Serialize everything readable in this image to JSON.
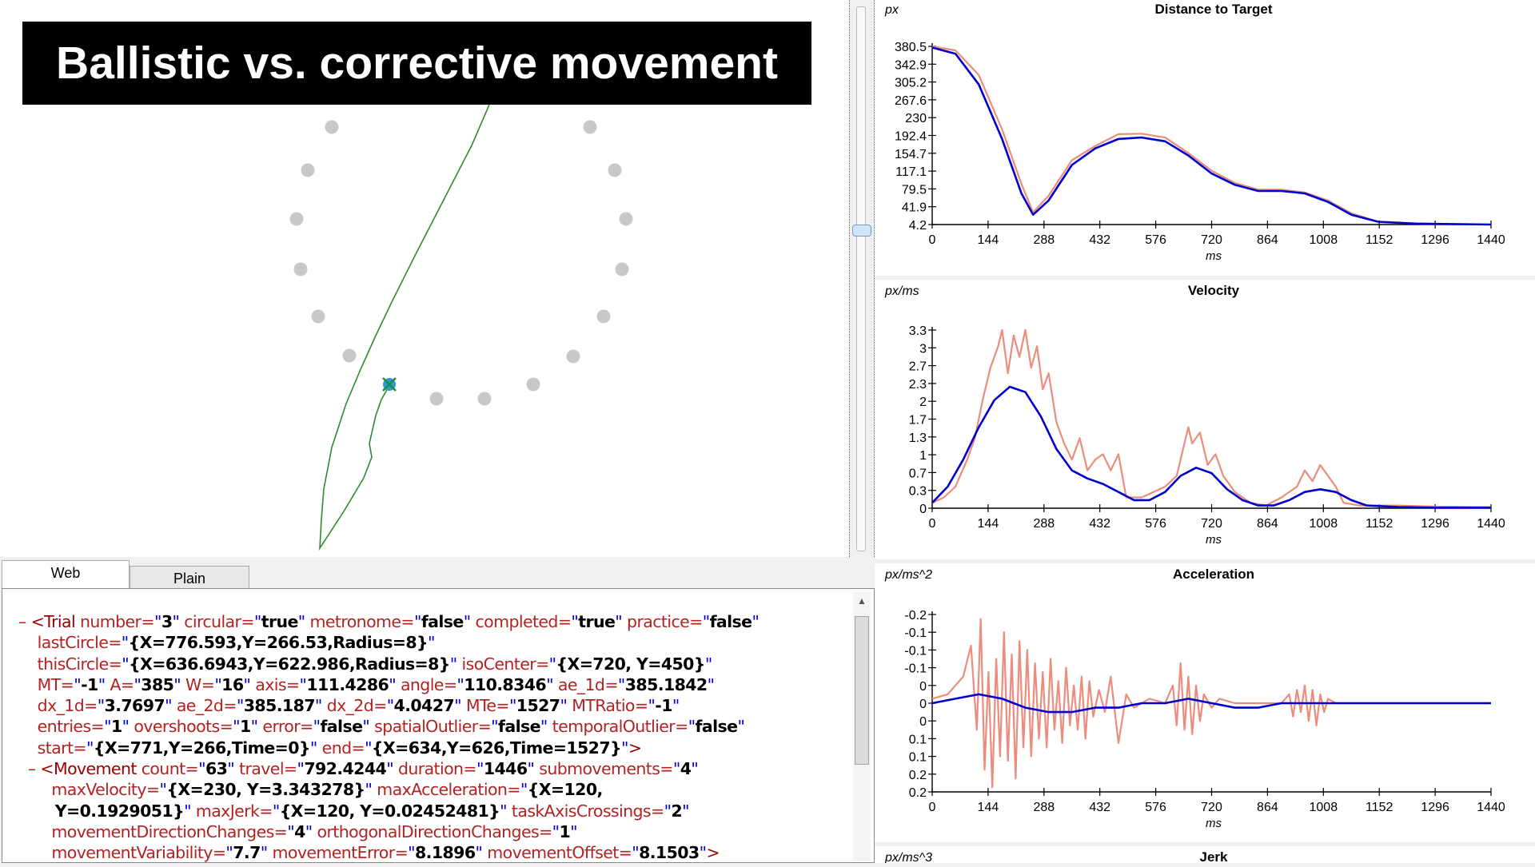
{
  "title_banner": "Ballistic vs. corrective movement",
  "tabs": [
    "Web",
    "Plain"
  ],
  "xml_lines": [
    [
      [
        "mk",
        "– "
      ],
      [
        "tg",
        "<Trial "
      ],
      [
        "at",
        "number="
      ],
      [
        "q",
        "\""
      ],
      [
        "v",
        "3"
      ],
      [
        "q",
        "\""
      ],
      [
        "at",
        " circular="
      ],
      [
        "q",
        "\""
      ],
      [
        "v",
        "true"
      ],
      [
        "q",
        "\""
      ],
      [
        "at",
        " metronome="
      ],
      [
        "q",
        "\""
      ],
      [
        "v",
        "false"
      ],
      [
        "q",
        "\""
      ],
      [
        "at",
        " completed="
      ],
      [
        "q",
        "\""
      ],
      [
        "v",
        "true"
      ],
      [
        "q",
        "\""
      ],
      [
        "at",
        " practice="
      ],
      [
        "q",
        "\""
      ],
      [
        "v",
        "false"
      ],
      [
        "q",
        "\""
      ]
    ],
    [
      [
        "at",
        "    lastCircle="
      ],
      [
        "q",
        "\""
      ],
      [
        "v",
        "{X=776.593,Y=266.53,Radius=8}"
      ],
      [
        "q",
        "\""
      ]
    ],
    [
      [
        "at",
        "    thisCircle="
      ],
      [
        "q",
        "\""
      ],
      [
        "v",
        "{X=636.6943,Y=622.986,Radius=8}"
      ],
      [
        "q",
        "\""
      ],
      [
        "at",
        " isoCenter="
      ],
      [
        "q",
        "\""
      ],
      [
        "v",
        "{X=720, Y=450}"
      ],
      [
        "q",
        "\""
      ]
    ],
    [
      [
        "at",
        "    MT="
      ],
      [
        "q",
        "\""
      ],
      [
        "v",
        "-1"
      ],
      [
        "q",
        "\""
      ],
      [
        "at",
        " A="
      ],
      [
        "q",
        "\""
      ],
      [
        "v",
        "385"
      ],
      [
        "q",
        "\""
      ],
      [
        "at",
        " W="
      ],
      [
        "q",
        "\""
      ],
      [
        "v",
        "16"
      ],
      [
        "q",
        "\""
      ],
      [
        "at",
        " axis="
      ],
      [
        "q",
        "\""
      ],
      [
        "v",
        "111.4286"
      ],
      [
        "q",
        "\""
      ],
      [
        "at",
        " angle="
      ],
      [
        "q",
        "\""
      ],
      [
        "v",
        "110.8346"
      ],
      [
        "q",
        "\""
      ],
      [
        "at",
        " ae_1d="
      ],
      [
        "q",
        "\""
      ],
      [
        "v",
        "385.1842"
      ],
      [
        "q",
        "\""
      ]
    ],
    [
      [
        "at",
        "    dx_1d="
      ],
      [
        "q",
        "\""
      ],
      [
        "v",
        "3.7697"
      ],
      [
        "q",
        "\""
      ],
      [
        "at",
        " ae_2d="
      ],
      [
        "q",
        "\""
      ],
      [
        "v",
        "385.187"
      ],
      [
        "q",
        "\""
      ],
      [
        "at",
        " dx_2d="
      ],
      [
        "q",
        "\""
      ],
      [
        "v",
        "4.0427"
      ],
      [
        "q",
        "\""
      ],
      [
        "at",
        " MTe="
      ],
      [
        "q",
        "\""
      ],
      [
        "v",
        "1527"
      ],
      [
        "q",
        "\""
      ],
      [
        "at",
        " MTRatio="
      ],
      [
        "q",
        "\""
      ],
      [
        "v",
        "-1"
      ],
      [
        "q",
        "\""
      ]
    ],
    [
      [
        "at",
        "    entries="
      ],
      [
        "q",
        "\""
      ],
      [
        "v",
        "1"
      ],
      [
        "q",
        "\""
      ],
      [
        "at",
        " overshoots="
      ],
      [
        "q",
        "\""
      ],
      [
        "v",
        "1"
      ],
      [
        "q",
        "\""
      ],
      [
        "at",
        " error="
      ],
      [
        "q",
        "\""
      ],
      [
        "v",
        "false"
      ],
      [
        "q",
        "\""
      ],
      [
        "at",
        " spatialOutlier="
      ],
      [
        "q",
        "\""
      ],
      [
        "v",
        "false"
      ],
      [
        "q",
        "\""
      ],
      [
        "at",
        " temporalOutlier="
      ],
      [
        "q",
        "\""
      ],
      [
        "v",
        "false"
      ],
      [
        "q",
        "\""
      ]
    ],
    [
      [
        "at",
        "    start="
      ],
      [
        "q",
        "\""
      ],
      [
        "v",
        "{X=771,Y=266,Time=0}"
      ],
      [
        "q",
        "\""
      ],
      [
        "at",
        " end="
      ],
      [
        "q",
        "\""
      ],
      [
        "v",
        "{X=634,Y=626,Time=1527}"
      ],
      [
        "q",
        "\""
      ],
      [
        "tg",
        ">"
      ]
    ],
    [
      [
        "mk",
        "  – "
      ],
      [
        "tg",
        "<Movement "
      ],
      [
        "at",
        "count="
      ],
      [
        "q",
        "\""
      ],
      [
        "v",
        "63"
      ],
      [
        "q",
        "\""
      ],
      [
        "at",
        " travel="
      ],
      [
        "q",
        "\""
      ],
      [
        "v",
        "792.4244"
      ],
      [
        "q",
        "\""
      ],
      [
        "at",
        " duration="
      ],
      [
        "q",
        "\""
      ],
      [
        "v",
        "1446"
      ],
      [
        "q",
        "\""
      ],
      [
        "at",
        " submovements="
      ],
      [
        "q",
        "\""
      ],
      [
        "v",
        "4"
      ],
      [
        "q",
        "\""
      ]
    ],
    [
      [
        "at",
        "       maxVelocity="
      ],
      [
        "q",
        "\""
      ],
      [
        "v",
        "{X=230, Y=3.343278}"
      ],
      [
        "q",
        "\""
      ],
      [
        "at",
        " maxAcceleration="
      ],
      [
        "q",
        "\""
      ],
      [
        "v",
        "{X=120,"
      ]
    ],
    [
      [
        "v",
        "       Y=0.1929051}"
      ],
      [
        "q",
        "\""
      ],
      [
        "at",
        " maxJerk="
      ],
      [
        "q",
        "\""
      ],
      [
        "v",
        "{X=120, Y=0.02452481}"
      ],
      [
        "q",
        "\""
      ],
      [
        "at",
        " taskAxisCrossings="
      ],
      [
        "q",
        "\""
      ],
      [
        "v",
        "2"
      ],
      [
        "q",
        "\""
      ]
    ],
    [
      [
        "at",
        "       movementDirectionChanges="
      ],
      [
        "q",
        "\""
      ],
      [
        "v",
        "4"
      ],
      [
        "q",
        "\""
      ],
      [
        "at",
        " orthogonalDirectionChanges="
      ],
      [
        "q",
        "\""
      ],
      [
        "v",
        "1"
      ],
      [
        "q",
        "\""
      ]
    ],
    [
      [
        "at",
        "       movementVariability="
      ],
      [
        "q",
        "\""
      ],
      [
        "v",
        "7.7"
      ],
      [
        "q",
        "\""
      ],
      [
        "at",
        " movementError="
      ],
      [
        "q",
        "\""
      ],
      [
        "v",
        "8.1896"
      ],
      [
        "q",
        "\""
      ],
      [
        "at",
        " movementOffset="
      ],
      [
        "q",
        "\""
      ],
      [
        "v",
        "8.1503"
      ],
      [
        "q",
        "\""
      ],
      [
        "tg",
        ">"
      ]
    ]
  ],
  "chart_data": [
    {
      "type": "line",
      "title": "Distance to Target",
      "ylabel": "px",
      "xlabel": "ms",
      "x_ticks": [
        "0",
        "144",
        "288",
        "432",
        "576",
        "720",
        "864",
        "1008",
        "1152",
        "1296",
        "1440"
      ],
      "y_ticks": [
        "4.2",
        "41.9",
        "79.5",
        "117.1",
        "154.7",
        "192.4",
        "230",
        "267.6",
        "305.2",
        "342.9",
        "380.5"
      ],
      "ylim": [
        4.2,
        380.5
      ],
      "xlim": [
        0,
        1440
      ],
      "series": [
        {
          "color": "#ec8c7c",
          "x": [
            0,
            60,
            120,
            180,
            230,
            260,
            300,
            360,
            420,
            480,
            540,
            600,
            660,
            720,
            780,
            840,
            900,
            960,
            1020,
            1080,
            1150,
            1250,
            1300
          ],
          "values": [
            380,
            372,
            320,
            205,
            90,
            30,
            65,
            140,
            170,
            195,
            196,
            188,
            155,
            118,
            92,
            78,
            78,
            72,
            55,
            28,
            10,
            6,
            5
          ]
        },
        {
          "color": "#0000cc",
          "x": [
            0,
            60,
            120,
            180,
            230,
            260,
            300,
            360,
            420,
            480,
            540,
            600,
            660,
            720,
            780,
            840,
            900,
            960,
            1020,
            1080,
            1150,
            1250,
            1440
          ],
          "values": [
            378,
            365,
            300,
            185,
            70,
            25,
            55,
            130,
            165,
            185,
            188,
            180,
            150,
            112,
            88,
            75,
            75,
            70,
            52,
            25,
            10,
            6,
            4.2
          ]
        }
      ]
    },
    {
      "type": "line",
      "title": "Velocity",
      "ylabel": "px/ms",
      "xlabel": "ms",
      "x_ticks": [
        "0",
        "144",
        "288",
        "432",
        "576",
        "720",
        "864",
        "1008",
        "1152",
        "1296",
        "1440"
      ],
      "y_ticks": [
        "0",
        "0.3",
        "0.7",
        "1",
        "1.3",
        "1.7",
        "2",
        "2.3",
        "2.7",
        "3",
        "3.3"
      ],
      "ylim": [
        0,
        3.3
      ],
      "xlim": [
        0,
        1440
      ],
      "series": [
        {
          "color": "#ec8c7c",
          "x": [
            0,
            30,
            60,
            90,
            110,
            130,
            150,
            170,
            180,
            195,
            210,
            225,
            240,
            255,
            270,
            285,
            300,
            320,
            340,
            360,
            380,
            400,
            420,
            440,
            460,
            480,
            500,
            520,
            540,
            570,
            600,
            630,
            650,
            660,
            670,
            690,
            710,
            730,
            750,
            780,
            820,
            860,
            900,
            940,
            960,
            980,
            1000,
            1020,
            1040,
            1060,
            1100,
            1200,
            1300,
            1440
          ],
          "values": [
            0.1,
            0.2,
            0.4,
            0.9,
            1.3,
            2.0,
            2.6,
            3.0,
            3.3,
            2.5,
            3.2,
            2.8,
            3.3,
            2.6,
            3.0,
            2.2,
            2.5,
            1.6,
            1.2,
            0.9,
            1.3,
            0.7,
            0.9,
            1.0,
            0.7,
            1.0,
            0.2,
            0.2,
            0.2,
            0.3,
            0.4,
            0.6,
            1.2,
            1.5,
            1.2,
            1.4,
            0.8,
            1.0,
            0.6,
            0.3,
            0.1,
            0.05,
            0.2,
            0.4,
            0.7,
            0.5,
            0.8,
            0.6,
            0.4,
            0.1,
            0.05,
            0.05,
            0.03,
            0.02
          ]
        },
        {
          "color": "#0000cc",
          "x": [
            0,
            40,
            80,
            120,
            160,
            200,
            240,
            280,
            320,
            360,
            400,
            440,
            480,
            520,
            560,
            600,
            640,
            680,
            720,
            760,
            800,
            840,
            880,
            920,
            960,
            1000,
            1040,
            1080,
            1120,
            1200,
            1300,
            1440
          ],
          "values": [
            0.1,
            0.4,
            0.9,
            1.5,
            2.0,
            2.25,
            2.15,
            1.7,
            1.1,
            0.7,
            0.55,
            0.45,
            0.3,
            0.15,
            0.15,
            0.3,
            0.6,
            0.75,
            0.65,
            0.35,
            0.15,
            0.05,
            0.05,
            0.15,
            0.3,
            0.35,
            0.3,
            0.15,
            0.05,
            0.02,
            0.01,
            0.01
          ]
        }
      ]
    },
    {
      "type": "line",
      "title": "Acceleration",
      "ylabel": "px/ms^2",
      "xlabel": "ms",
      "x_ticks": [
        "0",
        "144",
        "288",
        "432",
        "576",
        "720",
        "864",
        "1008",
        "1152",
        "1296",
        "1440"
      ],
      "y_ticks": [
        "0.2",
        "0.2",
        "0.1",
        "0.1",
        "0",
        "0",
        "0",
        "-0.1",
        "-0.1",
        "-0.1",
        "-0.2"
      ],
      "ylim": [
        -0.2,
        0.2
      ],
      "xlim": [
        0,
        1440
      ],
      "series": [
        {
          "color": "#ec8c7c",
          "x": [
            0,
            40,
            80,
            100,
            115,
            125,
            135,
            145,
            155,
            165,
            175,
            185,
            195,
            205,
            215,
            225,
            235,
            245,
            255,
            265,
            275,
            285,
            295,
            305,
            315,
            325,
            335,
            345,
            355,
            365,
            375,
            385,
            395,
            405,
            415,
            430,
            445,
            460,
            480,
            500,
            520,
            560,
            600,
            620,
            630,
            640,
            650,
            660,
            670,
            680,
            690,
            700,
            720,
            740,
            780,
            840,
            900,
            920,
            930,
            940,
            950,
            960,
            970,
            980,
            990,
            1000,
            1010,
            1020,
            1040,
            1100,
            1200,
            1300,
            1440
          ],
          "values": [
            0.01,
            0.02,
            0.06,
            0.13,
            -0.06,
            0.19,
            -0.15,
            0.07,
            -0.19,
            0.1,
            -0.12,
            0.16,
            -0.13,
            0.11,
            -0.17,
            0.14,
            -0.1,
            0.12,
            -0.12,
            0.09,
            -0.08,
            0.07,
            -0.1,
            0.1,
            -0.06,
            0.05,
            -0.09,
            0.08,
            -0.05,
            0.04,
            -0.06,
            0.06,
            -0.08,
            0.05,
            -0.03,
            0.03,
            -0.02,
            0.06,
            -0.09,
            0.02,
            -0.01,
            0.01,
            0.0,
            0.04,
            -0.05,
            0.09,
            -0.06,
            0.06,
            -0.07,
            0.04,
            -0.04,
            0.02,
            -0.01,
            0.01,
            0.0,
            0.0,
            0.0,
            0.02,
            -0.03,
            0.03,
            -0.02,
            0.04,
            -0.04,
            0.03,
            -0.05,
            0.02,
            -0.02,
            0.01,
            0.0,
            0.0,
            0.0,
            0.0,
            0.0
          ]
        },
        {
          "color": "#0000cc",
          "x": [
            0,
            60,
            120,
            180,
            240,
            300,
            360,
            420,
            480,
            540,
            600,
            660,
            720,
            780,
            840,
            900,
            960,
            1020,
            1080,
            1200,
            1300,
            1440
          ],
          "values": [
            0.0,
            0.01,
            0.02,
            0.01,
            -0.01,
            -0.02,
            -0.02,
            -0.01,
            -0.01,
            0.0,
            0.0,
            0.01,
            0.0,
            -0.01,
            -0.01,
            0.0,
            0.0,
            0.0,
            0.0,
            0.0,
            0.0,
            0.0
          ]
        }
      ]
    },
    {
      "type": "line",
      "title": "Jerk",
      "ylabel": "px/ms^3",
      "xlabel": "",
      "series": []
    }
  ],
  "colors": {
    "trail": "#2e8b2e",
    "target_dot": "#c8c8c8",
    "cursor": "#2a9bd8",
    "cross": "#1e8c3a"
  }
}
